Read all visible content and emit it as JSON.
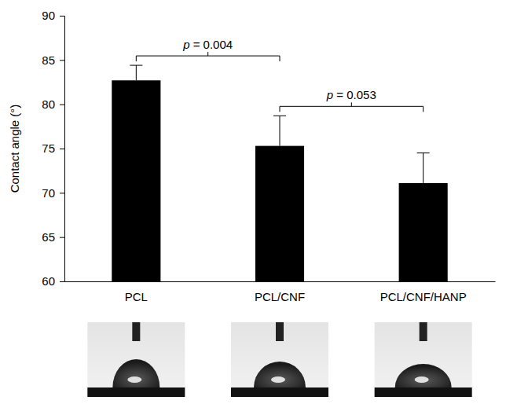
{
  "chart_data": {
    "type": "bar",
    "y_label": "Contact angle (°)",
    "categories": [
      "PCL",
      "PCL/CNF",
      "PCL/CNF/HANP"
    ],
    "values": [
      82.7,
      75.3,
      71.1
    ],
    "errors": [
      1.7,
      3.4,
      3.4
    ],
    "color": "#000000",
    "ylim": [
      60,
      90
    ],
    "yticks": [
      60,
      65,
      70,
      75,
      80,
      85,
      90
    ],
    "grid": false,
    "annotations": [
      {
        "text": "p = 0.004",
        "between": [
          0,
          1
        ]
      },
      {
        "text": "p = 0.053",
        "between": [
          1,
          2
        ]
      }
    ]
  }
}
